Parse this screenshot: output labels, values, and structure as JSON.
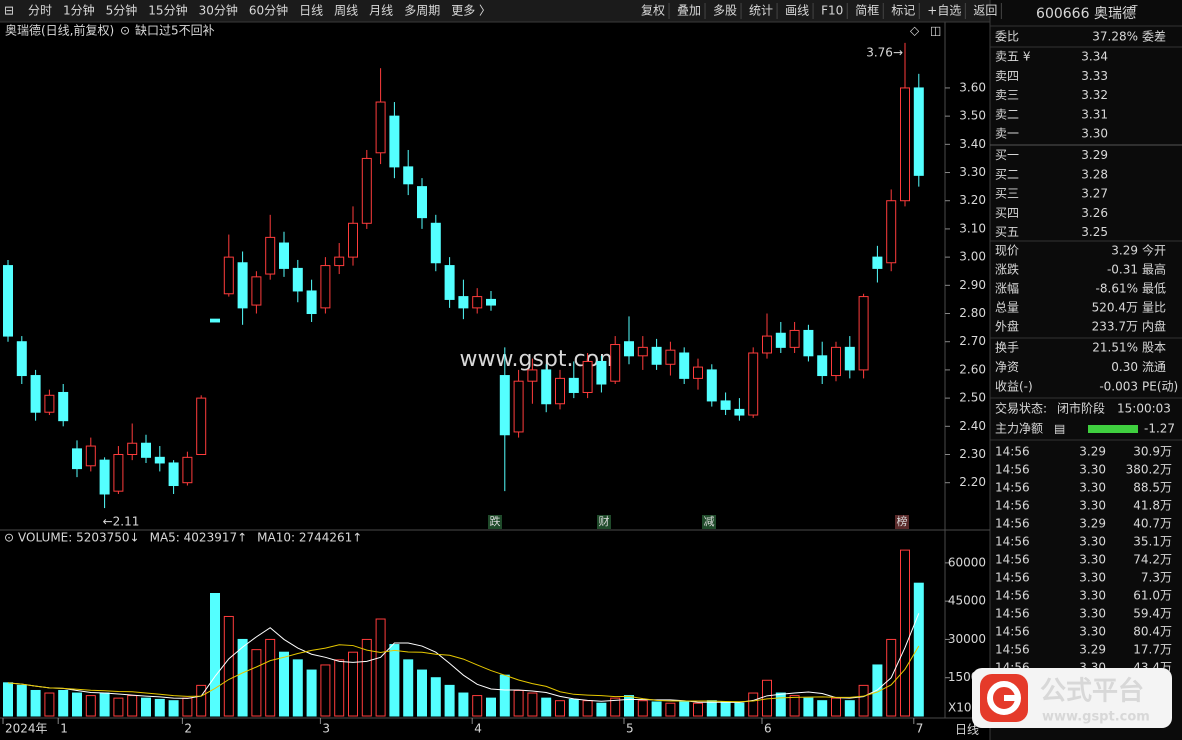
{
  "toolbar": {
    "periods": [
      "分时",
      "1分钟",
      "5分钟",
      "15分钟",
      "30分钟",
      "60分钟",
      "日线",
      "周线",
      "月线",
      "多周期",
      "更多 〉"
    ],
    "active": 6,
    "buttons": [
      "复权",
      "叠加",
      "多股",
      "统计",
      "画线",
      "F10",
      "简框",
      "标记",
      "+自选",
      "返回"
    ]
  },
  "chart_data": [
    {
      "type": "candlestick",
      "title": "奥瑞德(日线,前复权)",
      "subtitle": "缺口过5不回补",
      "open": [
        2.97,
        2.7,
        2.58,
        2.45,
        2.52,
        2.32,
        2.26,
        2.28,
        2.17,
        2.3,
        2.34,
        2.29,
        2.27,
        2.2,
        2.3,
        2.78,
        2.87,
        2.98,
        2.83,
        2.94,
        3.05,
        2.96,
        2.88,
        2.82,
        2.97,
        3.0,
        3.12,
        3.37,
        3.5,
        3.32,
        3.25,
        3.12,
        2.97,
        2.86,
        2.82,
        2.85,
        2.58,
        2.38,
        2.56,
        2.6,
        2.48,
        2.57,
        2.52,
        2.63,
        2.56,
        2.7,
        2.65,
        2.68,
        2.62,
        2.66,
        2.57,
        2.6,
        2.49,
        2.46,
        2.44,
        2.66,
        2.73,
        2.68,
        2.74,
        2.65,
        2.58,
        2.68,
        2.6,
        3.0,
        2.98,
        3.2,
        3.6
      ],
      "high": [
        2.99,
        2.72,
        2.6,
        2.53,
        2.55,
        2.35,
        2.36,
        2.29,
        2.33,
        2.41,
        2.37,
        2.33,
        2.28,
        2.31,
        2.51,
        2.78,
        3.08,
        3.02,
        2.95,
        3.15,
        3.09,
        2.99,
        2.92,
        3.0,
        3.05,
        3.18,
        3.38,
        3.67,
        3.55,
        3.38,
        3.28,
        3.15,
        3.0,
        2.92,
        2.89,
        2.88,
        2.68,
        2.6,
        2.64,
        2.62,
        2.6,
        2.63,
        2.66,
        2.65,
        2.72,
        2.79,
        2.72,
        2.71,
        2.7,
        2.68,
        2.64,
        2.62,
        2.52,
        2.5,
        2.68,
        2.8,
        2.77,
        2.77,
        2.76,
        2.7,
        2.7,
        2.72,
        2.87,
        3.04,
        3.24,
        3.76,
        3.65
      ],
      "low": [
        2.7,
        2.55,
        2.42,
        2.44,
        2.4,
        2.22,
        2.24,
        2.11,
        2.16,
        2.28,
        2.27,
        2.24,
        2.16,
        2.19,
        2.3,
        2.77,
        2.86,
        2.76,
        2.8,
        2.92,
        2.93,
        2.84,
        2.77,
        2.8,
        2.94,
        2.97,
        3.1,
        3.33,
        3.28,
        3.22,
        3.1,
        2.95,
        2.82,
        2.78,
        2.8,
        2.81,
        2.17,
        2.36,
        2.48,
        2.45,
        2.46,
        2.5,
        2.5,
        2.52,
        2.55,
        2.62,
        2.6,
        2.6,
        2.58,
        2.55,
        2.53,
        2.47,
        2.44,
        2.42,
        2.43,
        2.64,
        2.66,
        2.66,
        2.63,
        2.55,
        2.56,
        2.57,
        2.57,
        2.91,
        2.95,
        3.18,
        3.25
      ],
      "close": [
        2.72,
        2.58,
        2.45,
        2.51,
        2.42,
        2.25,
        2.33,
        2.16,
        2.3,
        2.34,
        2.29,
        2.27,
        2.19,
        2.29,
        2.5,
        2.77,
        3.0,
        2.82,
        2.93,
        3.07,
        2.96,
        2.88,
        2.8,
        2.97,
        3.0,
        3.12,
        3.35,
        3.55,
        3.32,
        3.26,
        3.14,
        2.98,
        2.85,
        2.82,
        2.86,
        2.83,
        2.37,
        2.56,
        2.6,
        2.48,
        2.57,
        2.52,
        2.63,
        2.55,
        2.69,
        2.65,
        2.68,
        2.62,
        2.67,
        2.57,
        2.61,
        2.49,
        2.46,
        2.44,
        2.66,
        2.72,
        2.68,
        2.74,
        2.65,
        2.58,
        2.68,
        2.6,
        2.86,
        2.96,
        3.2,
        3.6,
        3.29
      ],
      "ylim": [
        2.05,
        3.77
      ],
      "yticks": [
        {
          "value": 2.2,
          "label": "2.20"
        },
        {
          "value": 2.3,
          "label": "2.30"
        },
        {
          "value": 2.4,
          "label": "2.40"
        },
        {
          "value": 2.5,
          "label": "2.50"
        },
        {
          "value": 2.6,
          "label": "2.60"
        },
        {
          "value": 2.7,
          "label": "2.70"
        },
        {
          "value": 2.8,
          "label": "2.80"
        },
        {
          "value": 2.9,
          "label": "2.90"
        },
        {
          "value": 3.0,
          "label": "3.00"
        },
        {
          "value": 3.1,
          "label": "3.10"
        },
        {
          "value": 3.2,
          "label": "3.20"
        },
        {
          "value": 3.3,
          "label": "3.30"
        },
        {
          "value": 3.4,
          "label": "3.40"
        },
        {
          "value": 3.5,
          "label": "3.50"
        },
        {
          "value": 3.6,
          "label": "3.60"
        }
      ],
      "annotations": {
        "low": "←2.11",
        "high": "3.76→"
      },
      "events": [
        "跌",
        "财",
        "减",
        "榜"
      ],
      "up_color": "#ff3c3c",
      "down_color": "#54ffff"
    },
    {
      "type": "bar",
      "x_unit": "X100",
      "categories": [
        "2024年",
        null,
        null,
        null,
        "1",
        null,
        null,
        null,
        null,
        null,
        null,
        null,
        null,
        "2",
        null,
        null,
        null,
        null,
        null,
        null,
        null,
        null,
        null,
        "3",
        null,
        null,
        null,
        null,
        null,
        null,
        null,
        null,
        null,
        null,
        "4",
        null,
        null,
        null,
        null,
        null,
        null,
        null,
        null,
        null,
        null,
        "5",
        null,
        null,
        null,
        null,
        null,
        null,
        null,
        null,
        null,
        "6",
        null,
        null,
        null,
        null,
        null,
        null,
        null,
        null,
        null,
        null,
        "7"
      ],
      "series": [
        {
          "name": "VOLUME: 5203750↓",
          "color": "#ffffff",
          "values": [
            13000,
            12000,
            10000,
            9000,
            10000,
            9000,
            8000,
            9000,
            7000,
            8000,
            7000,
            6500,
            6000,
            7000,
            12000,
            48000,
            39000,
            30000,
            26000,
            30000,
            25000,
            22000,
            18000,
            20000,
            22000,
            25000,
            30000,
            38000,
            28000,
            22000,
            18000,
            15000,
            12000,
            9000,
            8000,
            7000,
            16000,
            10000,
            9000,
            7000,
            6000,
            6500,
            6000,
            5000,
            7000,
            8000,
            6000,
            5500,
            5000,
            5500,
            5000,
            6000,
            5500,
            5000,
            9000,
            14000,
            9000,
            8000,
            7000,
            6000,
            7000,
            6000,
            12000,
            20000,
            30000,
            65000,
            52037.5
          ]
        },
        {
          "name": "MA5: 4023917↑",
          "color": "#ffffff",
          "values": [
            13000,
            12500,
            11700,
            11000,
            10800,
            10000,
            9200,
            9000,
            8600,
            8200,
            7800,
            7500,
            7000,
            6900,
            7800,
            15500,
            22400,
            27000,
            31000,
            34600,
            30000,
            26600,
            24200,
            23000,
            21400,
            21000,
            21400,
            23000,
            28600,
            28600,
            27400,
            25000,
            20600,
            16000,
            12400,
            10600,
            10200,
            10200,
            9800,
            9200,
            7700,
            6700,
            6100,
            5800,
            6100,
            6500,
            6400,
            6300,
            6300,
            6000,
            5400,
            5400,
            5400,
            5300,
            6100,
            7900,
            8500,
            9000,
            9400,
            8800,
            7200,
            7000,
            7600,
            10200,
            15000,
            26800,
            40239
          ]
        },
        {
          "name": "MA10: 2744261↑",
          "color": "#e6c800",
          "values": [
            13000,
            12500,
            11700,
            11000,
            10800,
            10500,
            10100,
            9900,
            9600,
            9500,
            9000,
            8500,
            8000,
            7700,
            7800,
            10800,
            14300,
            16900,
            19200,
            21700,
            23000,
            24500,
            25700,
            26600,
            27900,
            27600,
            25800,
            24900,
            25700,
            25100,
            25000,
            24200,
            23800,
            22300,
            20000,
            17800,
            16000,
            14100,
            12700,
            11600,
            9500,
            8500,
            8200,
            8000,
            7600,
            7700,
            6800,
            6100,
            5900,
            5900,
            5900,
            5900,
            5700,
            5600,
            5900,
            6700,
            7100,
            7300,
            7400,
            7500,
            7300,
            7300,
            7800,
            9400,
            12200,
            18300,
            27443
          ]
        }
      ],
      "ylim": [
        0,
        67000
      ],
      "yticks": [
        15000,
        30000,
        45000,
        60000
      ]
    }
  ],
  "quote": {
    "code": "600666 奥瑞德",
    "flag": "T",
    "ratio": {
      "label": "委比",
      "value": "37.28%",
      "label2": "委差",
      "color": "#ff4040"
    },
    "book": [
      {
        "label": "卖五 ¥",
        "price": "3.34"
      },
      {
        "label": "卖四",
        "price": "3.33"
      },
      {
        "label": "卖三",
        "price": "3.32"
      },
      {
        "label": "卖二",
        "price": "3.31"
      },
      {
        "label": "卖一",
        "price": "3.30"
      },
      {
        "label": "买一",
        "price": "3.29"
      },
      {
        "label": "买二",
        "price": "3.28"
      },
      {
        "label": "买三",
        "price": "3.27"
      },
      {
        "label": "买四",
        "price": "3.26"
      },
      {
        "label": "买五",
        "price": "3.25"
      }
    ],
    "book_color": "#3fcf3f",
    "stats": [
      {
        "label": "现价",
        "value": "3.29",
        "label2": "今开",
        "color": "#3fcf3f"
      },
      {
        "label": "涨跌",
        "value": "-0.31",
        "label2": "最高",
        "color": "#3fcf3f"
      },
      {
        "label": "涨幅",
        "value": "-8.61%",
        "label2": "最低",
        "color": "#3fcf3f"
      },
      {
        "label": "总量",
        "value": "520.4万",
        "label2": "量比",
        "color": "#e6c800"
      },
      {
        "label": "外盘",
        "value": "233.7万",
        "label2": "内盘",
        "color": "#ff4040"
      }
    ],
    "stats2": [
      {
        "label": "换手",
        "value": "21.51%",
        "label2": "股本",
        "color": "#e8e8e8"
      },
      {
        "label": "净资",
        "value": "0.30",
        "label2": "流通",
        "color": "#e8e8e8"
      },
      {
        "label": "收益(-)",
        "value": "-0.003",
        "label2": "PE(动)",
        "color": "#e8e8e8"
      }
    ],
    "status": {
      "label": "交易状态:",
      "value": "闭市阶段",
      "time": "15:00:03"
    },
    "flow": {
      "label": "主力净额",
      "value": "-1.27",
      "color": "#3fcf3f"
    },
    "trades": [
      {
        "time": "14:56",
        "price": "3.29",
        "vol": "30.9万",
        "color": "#e040e0"
      },
      {
        "time": "14:56",
        "price": "3.30",
        "vol": "380.2万",
        "color": "#e040e0"
      },
      {
        "time": "14:56",
        "price": "3.30",
        "vol": "88.5万",
        "color": "#e040e0"
      },
      {
        "time": "14:56",
        "price": "3.30",
        "vol": "41.8万",
        "color": "#e040e0"
      },
      {
        "time": "14:56",
        "price": "3.29",
        "vol": "40.7万",
        "color": "#e040e0"
      },
      {
        "time": "14:56",
        "price": "3.30",
        "vol": "35.1万",
        "color": "#e040e0"
      },
      {
        "time": "14:56",
        "price": "3.30",
        "vol": "74.2万",
        "color": "#e040e0"
      },
      {
        "time": "14:56",
        "price": "3.30",
        "vol": "7.3万",
        "color": "#e6c800"
      },
      {
        "time": "14:56",
        "price": "3.30",
        "vol": "61.0万",
        "color": "#e040e0"
      },
      {
        "time": "14:56",
        "price": "3.30",
        "vol": "59.4万",
        "color": "#e040e0"
      },
      {
        "time": "14:56",
        "price": "3.30",
        "vol": "80.4万",
        "color": "#e040e0"
      },
      {
        "time": "14:56",
        "price": "3.29",
        "vol": "17.7万",
        "color": "#e040e0"
      },
      {
        "time": "14:56",
        "price": "3.30",
        "vol": "43.4万",
        "color": "#e040e0"
      }
    ]
  },
  "watermark": {
    "center": "www.gspt.com",
    "logo": "公式平台",
    "logo_url": "www.gspt.com"
  }
}
